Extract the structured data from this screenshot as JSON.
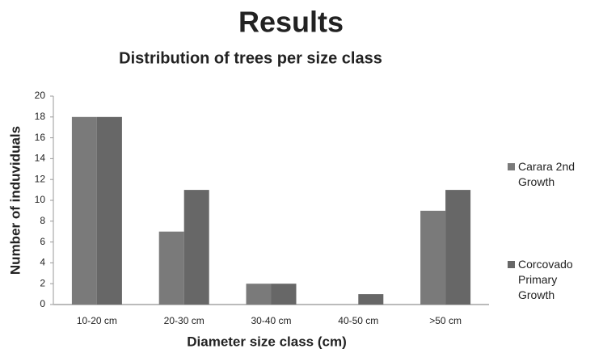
{
  "chart_data": {
    "type": "bar",
    "title": "Results",
    "subtitle": "Distribution of trees per size class",
    "x_label": "Diameter size class (cm)",
    "y_label": "Number of induviduals",
    "categories": [
      "10-20 cm",
      "20-30 cm",
      "30-40 cm",
      "40-50 cm",
      ">50 cm"
    ],
    "series": [
      {
        "name": "Carara 2nd Growth",
        "color": "#7a7a7a",
        "values": [
          18,
          7,
          2,
          0,
          9
        ]
      },
      {
        "name": "Corcovado Primary Growth",
        "color": "#676767",
        "values": [
          18,
          11,
          2,
          1,
          11
        ]
      }
    ],
    "ylim": [
      0,
      20
    ],
    "yticks": [
      0,
      2,
      4,
      6,
      8,
      10,
      12,
      14,
      16,
      18,
      20
    ],
    "grid": false,
    "legend": "right"
  }
}
